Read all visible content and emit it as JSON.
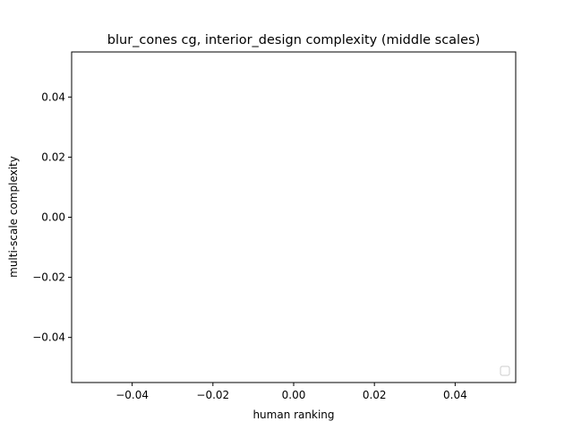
{
  "chart_data": {
    "type": "scatter",
    "title": "blur_cones cg, interior_design complexity (middle scales)",
    "xlabel": "human ranking",
    "ylabel": "multi-scale complexity",
    "xlim": [
      -0.055,
      0.055
    ],
    "ylim": [
      -0.055,
      0.055
    ],
    "xticks": [
      {
        "value": -0.04,
        "label": "−0.04"
      },
      {
        "value": -0.02,
        "label": "−0.02"
      },
      {
        "value": 0.0,
        "label": "0.00"
      },
      {
        "value": 0.02,
        "label": "0.02"
      },
      {
        "value": 0.04,
        "label": "0.04"
      }
    ],
    "yticks": [
      {
        "value": -0.04,
        "label": "−0.04"
      },
      {
        "value": -0.02,
        "label": "−0.02"
      },
      {
        "value": 0.0,
        "label": "0.00"
      },
      {
        "value": 0.02,
        "label": "0.02"
      },
      {
        "value": 0.04,
        "label": "0.04"
      }
    ],
    "series": [],
    "legend": {
      "position": "lower-right",
      "entries": []
    },
    "grid": false
  },
  "colors": {
    "background": "#ffffff",
    "axes": "#000000",
    "legend_border": "#cccccc"
  }
}
